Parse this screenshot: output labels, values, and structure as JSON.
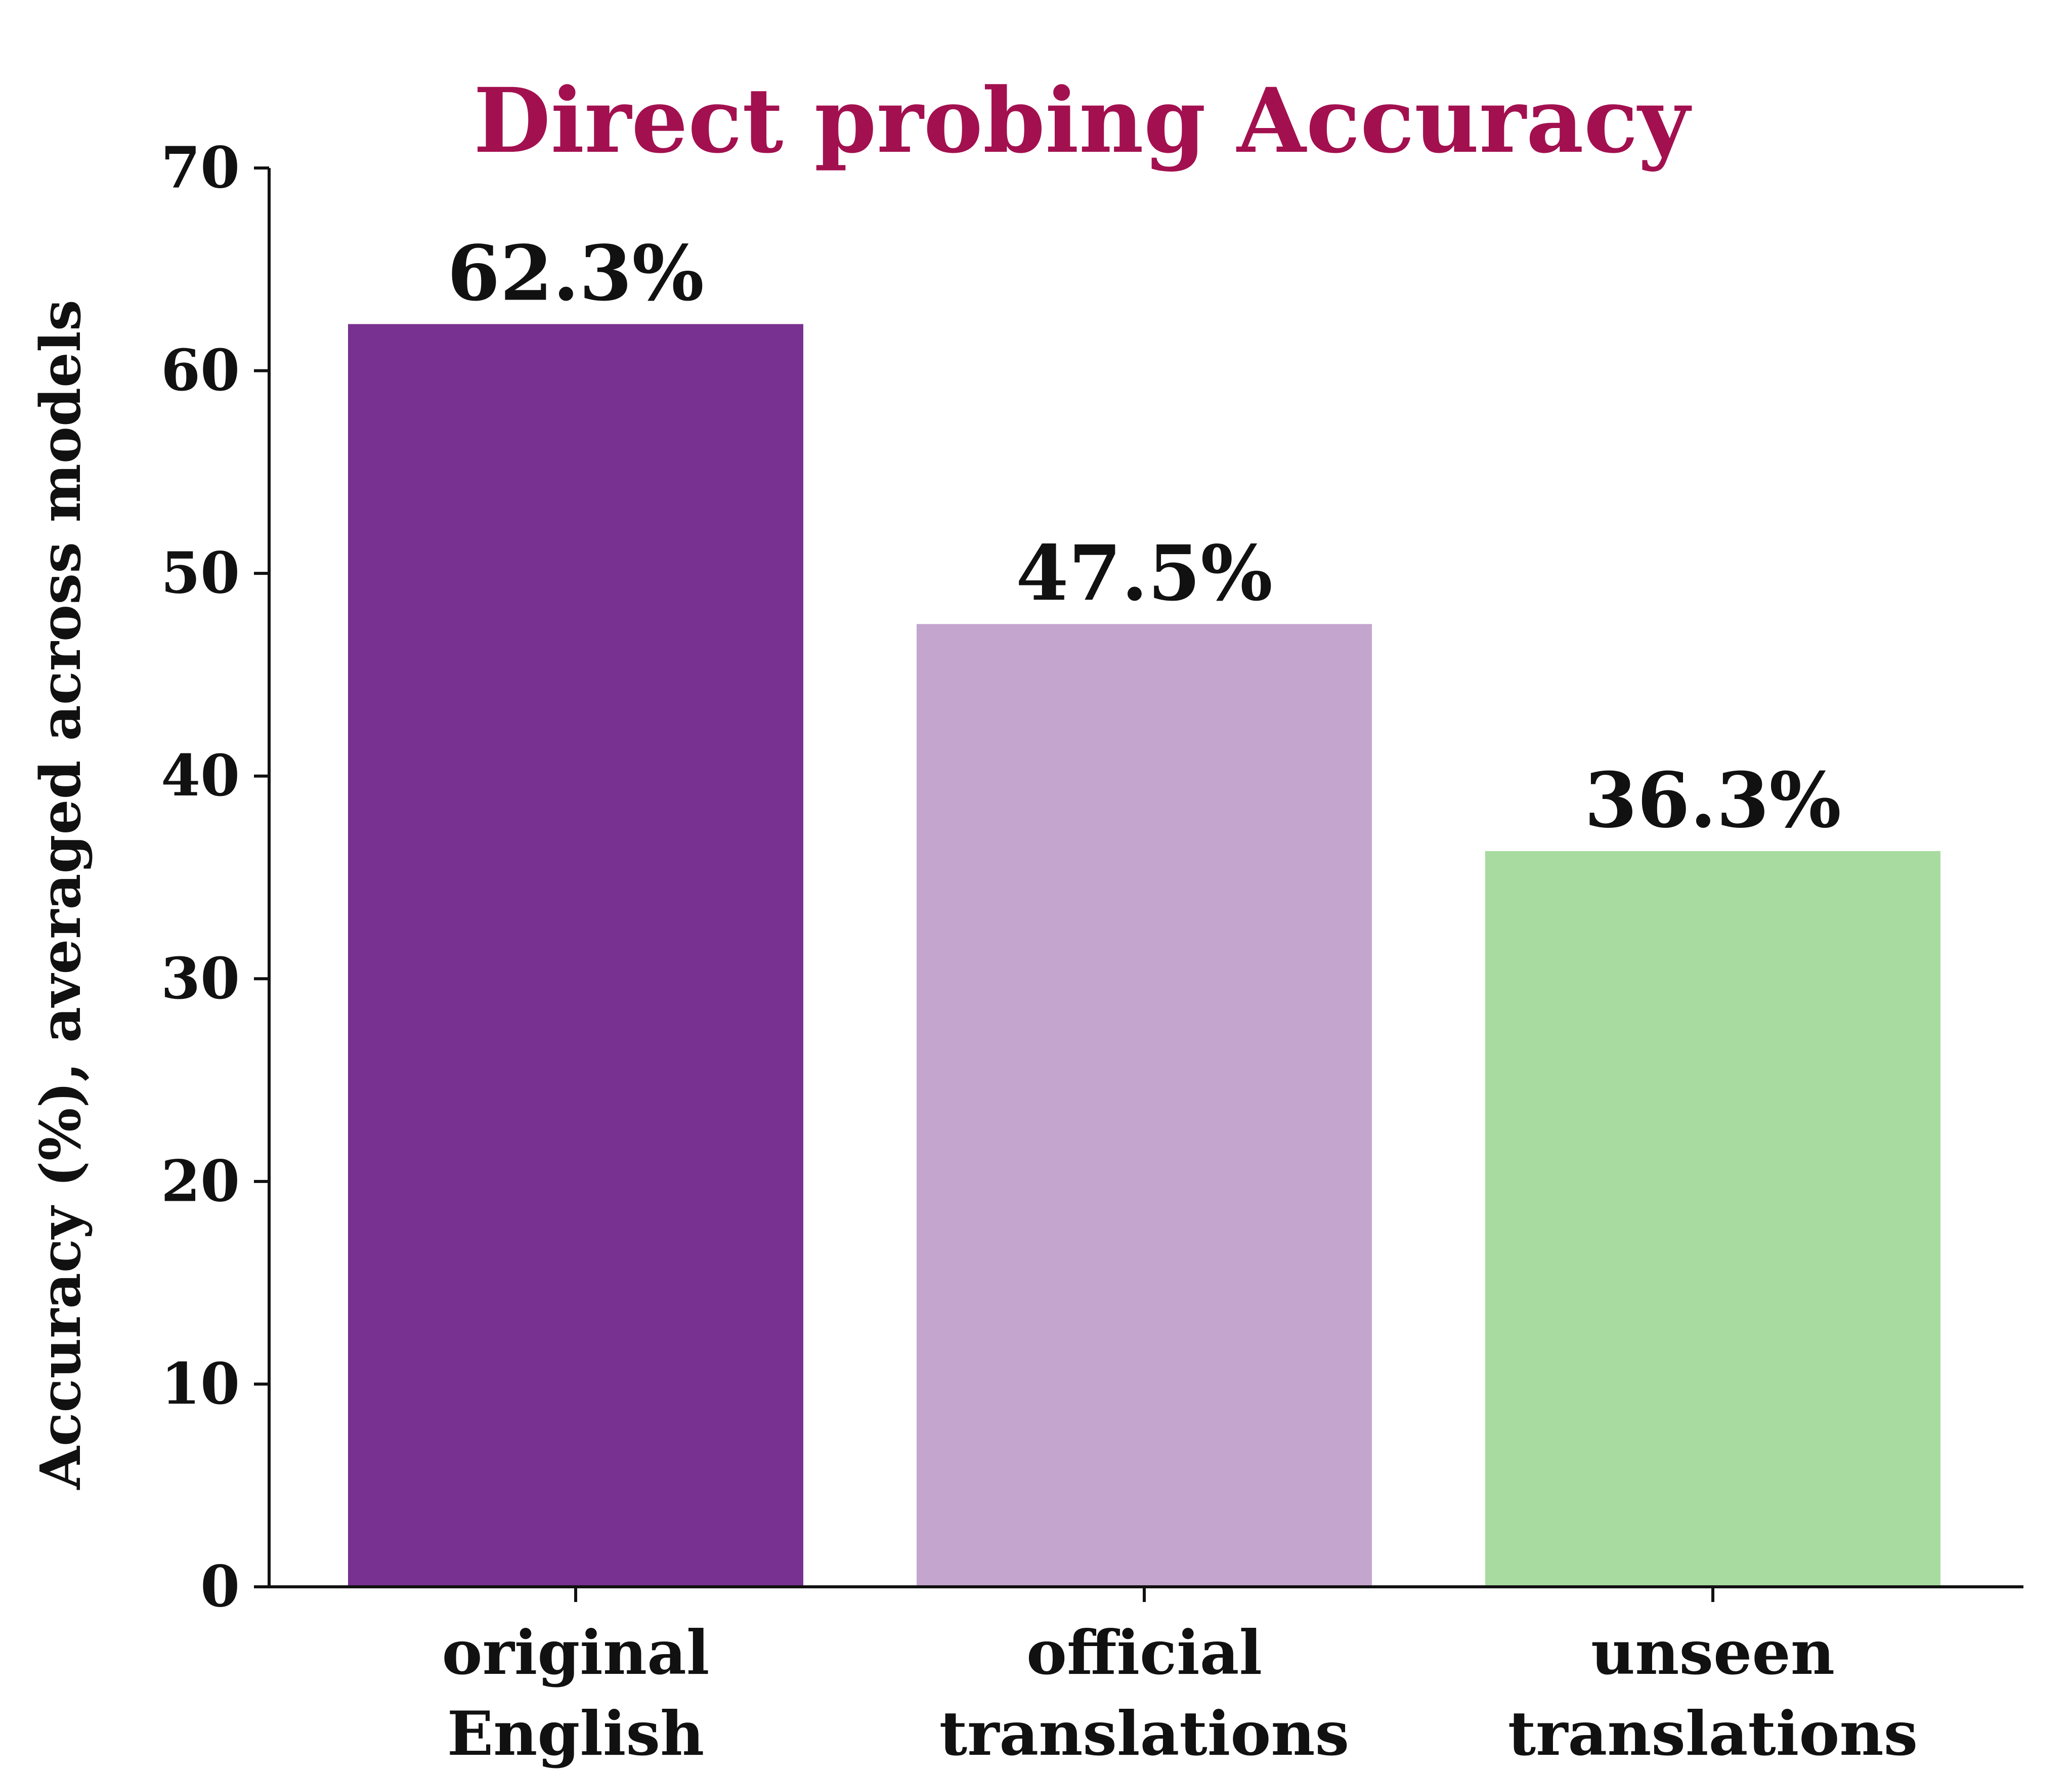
{
  "chart_data": {
    "type": "bar",
    "title": "Direct probing Accuracy",
    "xlabel": "",
    "ylabel": "Accuracy (%), averaged across models",
    "categories": [
      [
        "original",
        "English"
      ],
      [
        "official",
        "translations"
      ],
      [
        "unseen",
        "translations"
      ]
    ],
    "values": [
      62.3,
      47.5,
      36.3
    ],
    "data_labels": [
      "62.3%",
      "47.5%",
      "36.3%"
    ],
    "colors": [
      "#783190",
      "#c3a5ce",
      "#a8dba0"
    ],
    "title_color": "#a3104f",
    "ylim": [
      0,
      70
    ],
    "yticks": [
      0,
      10,
      20,
      30,
      40,
      50,
      60,
      70
    ],
    "grid": false,
    "legend": "none"
  }
}
